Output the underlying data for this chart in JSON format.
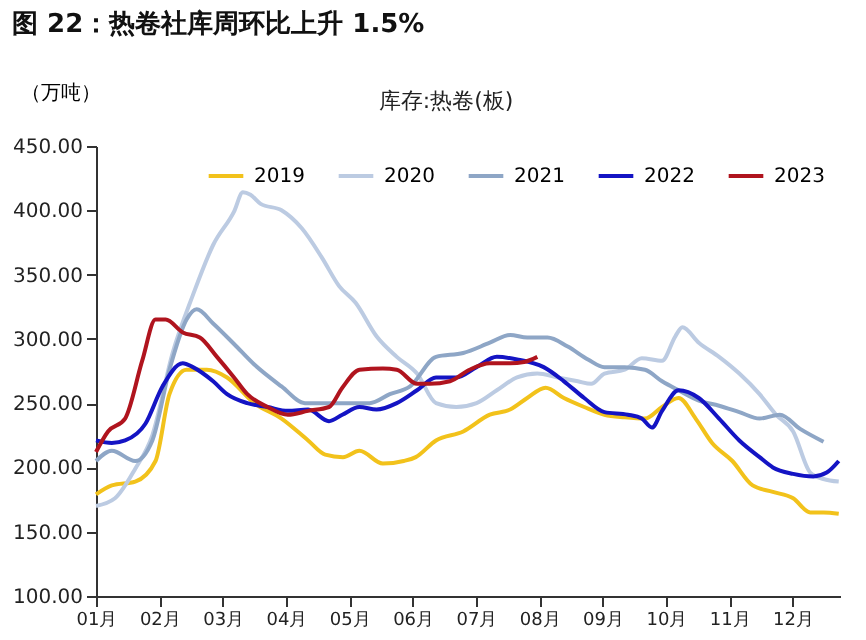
{
  "chart_data": {
    "type": "line",
    "title": "图 22：热卷社库周环比上升 1.5%",
    "subtitle": "库存:热卷(板)",
    "ylabel": "（万吨）",
    "xlim": [
      1,
      12.75
    ],
    "xticks": [
      {
        "value": 1,
        "label": "01月"
      },
      {
        "value": 2,
        "label": "02月"
      },
      {
        "value": 3,
        "label": "03月"
      },
      {
        "value": 4,
        "label": "04月"
      },
      {
        "value": 5,
        "label": "05月"
      },
      {
        "value": 6,
        "label": "06月"
      },
      {
        "value": 7,
        "label": "07月"
      },
      {
        "value": 8,
        "label": "08月"
      },
      {
        "value": 9,
        "label": "09月"
      },
      {
        "value": 10,
        "label": "10月"
      },
      {
        "value": 11,
        "label": "11月"
      },
      {
        "value": 12,
        "label": "12月"
      }
    ],
    "ylim": [
      100,
      450
    ],
    "yticks": [
      {
        "value": 100,
        "label": "100.00"
      },
      {
        "value": 150,
        "label": "150.00"
      },
      {
        "value": 200,
        "label": "200.00"
      },
      {
        "value": 250,
        "label": "250.00"
      },
      {
        "value": 300,
        "label": "300.00"
      },
      {
        "value": 350,
        "label": "350.00"
      },
      {
        "value": 400,
        "label": "400.00"
      },
      {
        "value": 450,
        "label": "450.00"
      }
    ],
    "grid": false,
    "legend": "top",
    "marker": "none",
    "line_style": "solid",
    "series": [
      {
        "name": "2019",
        "color": "#f2c21b",
        "x": [
          1.0,
          1.25,
          1.62,
          1.94,
          2.16,
          2.43,
          2.75,
          3.07,
          3.5,
          3.93,
          4.35,
          4.62,
          4.9,
          5.16,
          5.53,
          5.86,
          6.05,
          6.37,
          6.8,
          7.22,
          7.54,
          7.81,
          8.1,
          8.39,
          8.71,
          9.03,
          9.35,
          9.67,
          9.94,
          10.2,
          10.47,
          10.73,
          11.05,
          11.37,
          11.69,
          12.01,
          12.28,
          12.49,
          12.73
        ],
        "values": [
          179,
          186,
          189,
          205,
          257,
          276,
          276,
          270,
          250,
          238,
          221,
          210,
          208,
          213,
          203,
          205,
          208,
          221,
          228,
          241,
          245,
          254,
          262,
          254,
          247,
          241,
          239,
          238,
          247,
          254,
          238,
          219,
          205,
          186,
          181,
          176,
          165,
          165,
          164
        ]
      },
      {
        "name": "2020",
        "color": "#bccbe2",
        "x": [
          1.0,
          1.3,
          1.62,
          1.89,
          2.21,
          2.53,
          2.85,
          3.18,
          3.32,
          3.44,
          3.6,
          3.93,
          4.25,
          4.57,
          4.84,
          5.1,
          5.43,
          5.75,
          6.07,
          6.37,
          6.69,
          7.01,
          7.33,
          7.65,
          7.97,
          8.29,
          8.61,
          8.82,
          9.03,
          9.35,
          9.62,
          9.94,
          10.15,
          10.26,
          10.52,
          10.84,
          11.16,
          11.48,
          11.74,
          12.01,
          12.28,
          12.49,
          12.73
        ],
        "values": [
          170,
          176,
          199,
          225,
          289,
          334,
          373,
          399,
          414,
          412,
          405,
          400,
          386,
          363,
          341,
          328,
          302,
          286,
          273,
          250,
          247,
          250,
          260,
          270,
          273,
          270,
          267,
          265,
          273,
          276,
          285,
          283,
          302,
          309,
          297,
          286,
          273,
          257,
          241,
          228,
          196,
          191,
          189
        ]
      },
      {
        "name": "2021",
        "color": "#8ea6c6",
        "x": [
          1.0,
          1.25,
          1.62,
          1.89,
          2.16,
          2.43,
          2.59,
          2.85,
          3.18,
          3.5,
          3.93,
          4.3,
          4.68,
          4.94,
          5.32,
          5.64,
          5.96,
          6.37,
          6.8,
          7.22,
          7.54,
          7.81,
          8.13,
          8.45,
          8.77,
          9.03,
          9.35,
          9.67,
          9.94,
          10.2,
          10.52,
          10.84,
          11.16,
          11.48,
          11.8,
          12.12,
          12.49
        ],
        "values": [
          205,
          213,
          205,
          221,
          276,
          315,
          323,
          312,
          296,
          280,
          263,
          250,
          250,
          250,
          250,
          257,
          263,
          286,
          289,
          297,
          303,
          301,
          301,
          294,
          284,
          278,
          278,
          276,
          267,
          260,
          252,
          248,
          243,
          238,
          241,
          230,
          220
        ]
      },
      {
        "name": "2022",
        "color": "#1414c4",
        "x": [
          1.0,
          1.25,
          1.46,
          1.78,
          2.05,
          2.37,
          2.53,
          2.85,
          3.07,
          3.39,
          3.71,
          4.03,
          4.35,
          4.68,
          4.89,
          5.16,
          5.43,
          5.75,
          6.07,
          6.37,
          6.69,
          7.01,
          7.33,
          7.65,
          8.07,
          8.39,
          8.71,
          9.03,
          9.4,
          9.62,
          9.78,
          9.94,
          10.2,
          10.52,
          10.84,
          11.16,
          11.48,
          11.69,
          12.01,
          12.33,
          12.54,
          12.73
        ],
        "values": [
          221,
          219,
          221,
          234,
          263,
          281,
          278,
          267,
          257,
          250,
          247,
          244,
          245,
          236,
          241,
          247,
          245,
          250,
          260,
          270,
          270,
          278,
          286,
          284,
          278,
          267,
          254,
          243,
          241,
          238,
          231,
          244,
          260,
          254,
          238,
          221,
          208,
          200,
          195,
          193,
          196,
          205
        ]
      },
      {
        "name": "2023",
        "color": "#b0141e",
        "x": [
          1.0,
          1.19,
          1.46,
          1.73,
          1.94,
          2.1,
          2.37,
          2.64,
          2.91,
          3.18,
          3.39,
          3.71,
          4.03,
          4.35,
          4.68,
          4.89,
          5.16,
          5.53,
          5.75,
          6.07,
          6.27,
          6.59,
          6.9,
          7.22,
          7.54,
          7.76,
          7.97
        ],
        "values": [
          212,
          228,
          238,
          283,
          315,
          315,
          305,
          301,
          286,
          270,
          257,
          247,
          241,
          244,
          247,
          262,
          276,
          277,
          276,
          265,
          265,
          267,
          276,
          281,
          281,
          282,
          286
        ]
      }
    ]
  }
}
